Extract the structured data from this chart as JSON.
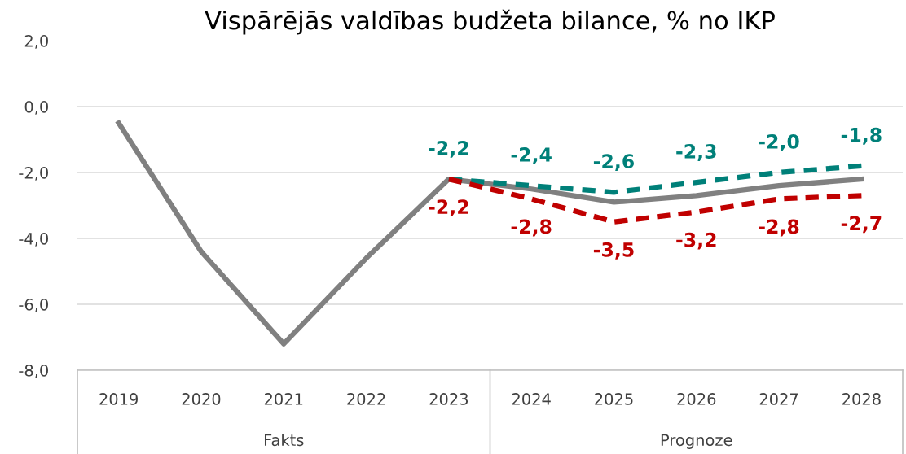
{
  "chart_data": {
    "type": "line",
    "title": "Vispārējās valdības budžeta bilance, % no IKP",
    "categories": [
      "2019",
      "2020",
      "2021",
      "2022",
      "2023",
      "2024",
      "2025",
      "2026",
      "2027",
      "2028"
    ],
    "series": [
      {
        "color": "#808080",
        "line_style": "solid",
        "values": [
          -0.5,
          -4.4,
          -7.2,
          -4.6,
          -2.2,
          -2.5,
          -2.9,
          -2.7,
          -2.4,
          -2.2
        ]
      },
      {
        "color": "#008079",
        "line_style": "dashed",
        "values": [
          null,
          null,
          null,
          null,
          -2.2,
          -2.4,
          -2.6,
          -2.3,
          -2.0,
          -1.8
        ],
        "value_labels": [
          null,
          null,
          null,
          null,
          "-2,2",
          "-2,4",
          "-2,6",
          "-2,3",
          "-2,0",
          "-1,8"
        ]
      },
      {
        "color": "#c00000",
        "line_style": "dashed",
        "values": [
          null,
          null,
          null,
          null,
          -2.2,
          -2.8,
          -3.5,
          -3.2,
          -2.8,
          -2.7
        ],
        "value_labels": [
          null,
          null,
          null,
          null,
          "-2,2",
          "-2,8",
          "-3,5",
          "-3,2",
          "-2,8",
          "-2,7"
        ]
      }
    ],
    "ylim": [
      -8,
      2
    ],
    "yticks": [
      {
        "value": -8,
        "label": "-8,0"
      },
      {
        "value": -6,
        "label": "-6,0"
      },
      {
        "value": -4,
        "label": "-4,0"
      },
      {
        "value": -2,
        "label": "-2,0"
      },
      {
        "value": 0,
        "label": "0,0"
      },
      {
        "value": 2,
        "label": "2,0"
      }
    ],
    "grid": "y",
    "legend": false,
    "marker": "none",
    "annotations": [
      "Fakts",
      "Prognoze"
    ]
  }
}
